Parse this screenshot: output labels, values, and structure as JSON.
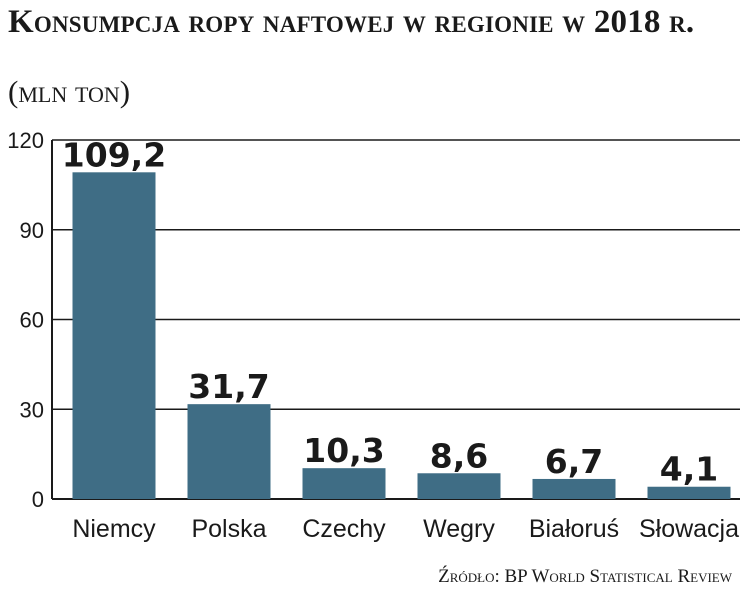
{
  "header": {
    "title": "Konsumpcja ropy naftowej w regionie w 2018 r.",
    "unit": "(mln ton)"
  },
  "footer": {
    "source": "Źródło: BP World Statistical Review"
  },
  "colors": {
    "bar": "#3f6d85",
    "gridline": "#1a1a1a",
    "text": "#1a1a1a"
  },
  "chart_data": {
    "type": "bar",
    "title": "Konsumpcja ropy naftowej w regionie w 2018 r.",
    "ylabel": "(mln ton)",
    "xlabel": "",
    "categories": [
      "Niemcy",
      "Polska",
      "Czechy",
      "Wegry",
      "Białoruś",
      "Słowacja"
    ],
    "values": [
      109.2,
      31.7,
      10.3,
      8.6,
      6.7,
      4.1
    ],
    "value_labels": [
      "109,2",
      "31,7",
      "10,3",
      "8,6",
      "6,7",
      "4,1"
    ],
    "yticks": [
      0,
      30,
      60,
      90,
      120
    ],
    "ylim": [
      0,
      120
    ],
    "grid": "horizontal",
    "legend": "none"
  }
}
